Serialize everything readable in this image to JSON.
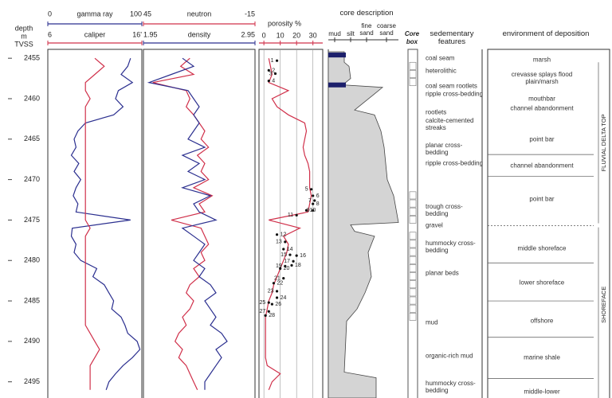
{
  "depth_axis": {
    "labels": [
      "depth",
      "m",
      "TVSS"
    ],
    "ticks": [
      2455,
      2460,
      2465,
      2470,
      2475,
      2480,
      2485,
      2490,
      2495
    ],
    "ylim": [
      2454,
      2497
    ]
  },
  "chart_data": [
    {
      "type": "line",
      "depth": [
        2455,
        2456,
        2457,
        2458,
        2459,
        2460,
        2461,
        2462,
        2463,
        2464,
        2465,
        2466,
        2467,
        2468,
        2469,
        2470,
        2471,
        2472,
        2473,
        2474,
        2475,
        2476,
        2477,
        2478,
        2479,
        2480,
        2481,
        2482,
        2483,
        2484,
        2485,
        2486,
        2487,
        2488,
        2489,
        2490,
        2491,
        2492,
        2493,
        2494,
        2495,
        2496
      ],
      "series": [
        {
          "name": "gamma ray",
          "color": "#2b2f8f",
          "xlim": [
            0,
            100
          ],
          "xticks": [
            0,
            100
          ],
          "values": [
            88,
            85,
            78,
            90,
            75,
            72,
            80,
            70,
            40,
            32,
            28,
            30,
            25,
            33,
            28,
            35,
            30,
            27,
            32,
            30,
            88,
            26,
            25,
            30,
            28,
            35,
            52,
            48,
            60,
            65,
            70,
            68,
            78,
            82,
            85,
            95,
            98,
            90,
            80,
            72,
            65,
            62
          ]
        },
        {
          "name": "caliper",
          "color": "#d0304a",
          "xlim": [
            6,
            16
          ],
          "xticks": [
            6,
            {
              "value": 16,
              "label": "16'"
            }
          ],
          "values": [
            11,
            12,
            11,
            10,
            10,
            10.5,
            10,
            10,
            10,
            10,
            10,
            10,
            10,
            10,
            10,
            10,
            10,
            10,
            10,
            10,
            10,
            10.5,
            10,
            10,
            10,
            10,
            10,
            10,
            10,
            10,
            10,
            10,
            10,
            10,
            10.5,
            11,
            11.5,
            11,
            10.5,
            10.5,
            10.5,
            10.5
          ]
        }
      ]
    },
    {
      "type": "line",
      "depth": [
        2455,
        2456,
        2457,
        2458,
        2459,
        2460,
        2461,
        2462,
        2463,
        2464,
        2465,
        2466,
        2467,
        2468,
        2469,
        2470,
        2471,
        2472,
        2473,
        2474,
        2475,
        2476,
        2477,
        2478,
        2479,
        2480,
        2481,
        2482,
        2483,
        2484,
        2485,
        2486,
        2487,
        2488,
        2489,
        2490,
        2491,
        2492,
        2493,
        2494,
        2495,
        2496
      ],
      "series": [
        {
          "name": "neutron",
          "color": "#d0304a",
          "xlim": [
            45,
            -15
          ],
          "xticks": [
            45,
            -15
          ],
          "values": [
            20,
            25,
            18,
            40,
            22,
            20,
            22,
            18,
            15,
            12,
            14,
            10,
            16,
            12,
            14,
            10,
            18,
            8,
            15,
            12,
            30,
            14,
            12,
            10,
            14,
            12,
            18,
            15,
            20,
            22,
            18,
            20,
            24,
            22,
            26,
            28,
            24,
            26,
            22,
            20,
            18,
            16
          ]
        },
        {
          "name": "density",
          "color": "#2b2f8f",
          "xlim": [
            1.95,
            2.95
          ],
          "xticks": [
            1.95,
            2.95
          ],
          "values": [
            2.3,
            2.4,
            2.2,
            2.0,
            2.35,
            2.4,
            2.45,
            2.4,
            2.45,
            2.4,
            2.35,
            2.5,
            2.3,
            2.45,
            2.35,
            2.5,
            2.3,
            2.55,
            2.4,
            2.45,
            2.6,
            2.3,
            2.4,
            2.5,
            2.45,
            2.4,
            2.5,
            2.45,
            2.55,
            2.6,
            2.5,
            2.55,
            2.6,
            2.55,
            2.65,
            2.7,
            2.6,
            2.65,
            2.6,
            2.55,
            2.5,
            2.5
          ]
        }
      ]
    },
    {
      "type": "line",
      "title": "porosity %",
      "depth": [
        2455,
        2456,
        2457,
        2458,
        2459,
        2460,
        2461,
        2462,
        2463,
        2464,
        2465,
        2466,
        2467,
        2468,
        2469,
        2470,
        2471,
        2472,
        2473,
        2474,
        2475,
        2476,
        2477,
        2478,
        2479,
        2480,
        2481,
        2482,
        2483,
        2484,
        2485,
        2486,
        2487,
        2488,
        2489,
        2490,
        2491,
        2492,
        2493,
        2494,
        2495,
        2496
      ],
      "series": [
        {
          "color": "#d0304a",
          "xlim": [
            -3,
            36
          ],
          "xticks": [
            0,
            10,
            20,
            30
          ],
          "grid": true,
          "values": [
            3,
            4,
            5,
            3,
            15,
            5,
            8,
            15,
            25,
            26,
            25,
            24,
            25,
            27,
            28,
            28,
            28,
            29,
            28,
            27,
            3,
            22,
            12,
            15,
            14,
            12,
            10,
            8,
            6,
            5,
            3,
            2,
            1,
            1,
            1,
            1,
            1,
            1,
            2,
            10,
            5,
            3
          ]
        }
      ],
      "samples": {
        "color": "#111111",
        "labels": [
          "1",
          "2",
          "3",
          "4",
          "5",
          "6",
          "7",
          "8",
          "9",
          "10",
          "11",
          "12",
          "13",
          "14",
          "15",
          "16",
          "17",
          "18",
          "19",
          "20",
          "21",
          "22",
          "23",
          "24",
          "25",
          "26",
          "27",
          "28"
        ],
        "depth": [
          2455.3,
          2456.5,
          2456.9,
          2457.8,
          2471.2,
          2472,
          2472.6,
          2473,
          2473.8,
          2473.8,
          2474.4,
          2476.8,
          2477.7,
          2478.6,
          2479.3,
          2479.4,
          2480.1,
          2480.6,
          2480.7,
          2481,
          2482.2,
          2482.8,
          2483.8,
          2484.6,
          2485.2,
          2485.4,
          2486.3,
          2486.8
        ],
        "values": [
          8,
          3,
          7,
          3,
          29,
          30,
          31,
          30,
          30,
          26,
          20,
          8,
          13,
          12,
          16,
          20,
          18,
          17,
          13,
          10,
          12,
          6,
          8,
          8,
          3,
          5,
          3,
          1
        ]
      }
    }
  ],
  "core_description": {
    "title": "core description",
    "grain_sizes": [
      "mud",
      "silt",
      "fine sand",
      "coarse sand"
    ]
  },
  "core_box": {
    "title": "Core box"
  },
  "sedimentary_features": {
    "title": "sedementary features",
    "items": [
      "coal seam",
      "heterolithic",
      "coal seam rootlets",
      "ripple cross-bedding",
      "rootlets",
      "calcite-cemented streaks",
      "planar cross-bedding",
      "ripple cross-bedding",
      "trough cross-bedding",
      "gravel",
      "hummocky cross-bedding",
      "planar beds",
      "mud",
      "organic-rich mud",
      "hummocky cross-bedding"
    ]
  },
  "environment": {
    "title": "environment of deposition",
    "items": [
      "marsh",
      "crevasse splays flood plain/marsh",
      "mouthbar",
      "channel abandonment",
      "point bar",
      "channel abandonment",
      "point bar",
      "middle shoreface",
      "lower shoreface",
      "offshore",
      "marine shale",
      "middle-lower"
    ],
    "groups": [
      "FLUVIAL DELTA TOP",
      "SHOREFACE"
    ]
  }
}
